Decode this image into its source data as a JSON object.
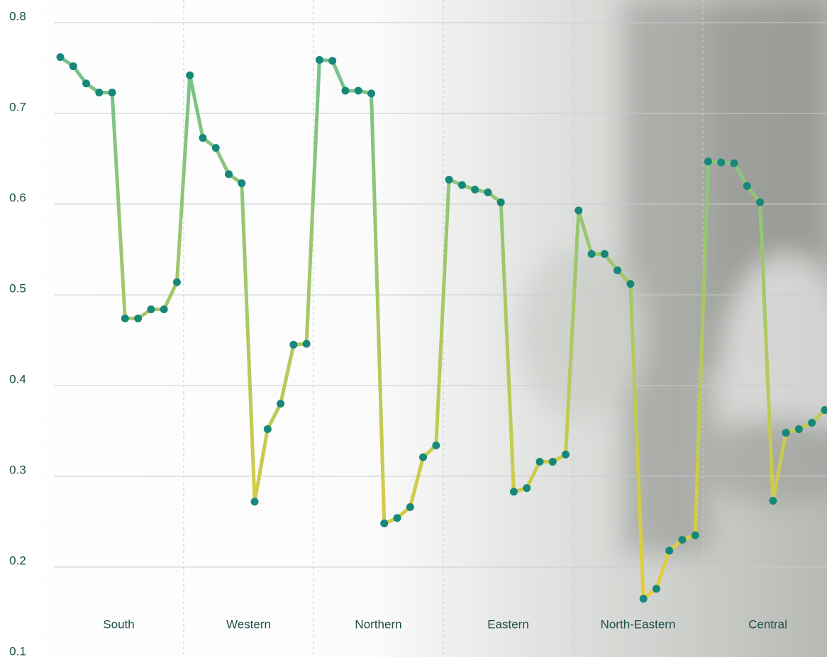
{
  "chart_data": {
    "type": "line",
    "ylim": [
      0.1,
      0.8
    ],
    "yticks": [
      0.1,
      0.2,
      0.3,
      0.4,
      0.5,
      0.6,
      0.7,
      0.8
    ],
    "grid": true,
    "line_colors": [
      "#6cc193",
      "#f3d02c"
    ],
    "marker_color": "#17877a",
    "groups": [
      {
        "name": "South",
        "values": [
          0.762,
          0.752,
          0.733,
          0.723,
          0.723,
          0.474,
          0.474,
          0.484,
          0.484,
          0.514
        ]
      },
      {
        "name": "Western",
        "values": [
          0.742,
          0.673,
          0.662,
          0.633,
          0.623,
          0.272,
          0.352,
          0.38,
          0.445,
          0.446
        ]
      },
      {
        "name": "Northern",
        "values": [
          0.759,
          0.758,
          0.725,
          0.725,
          0.722,
          0.248,
          0.254,
          0.266,
          0.321,
          0.334
        ]
      },
      {
        "name": "Eastern",
        "values": [
          0.627,
          0.621,
          0.616,
          0.613,
          0.602,
          0.283,
          0.287,
          0.316,
          0.316,
          0.324
        ]
      },
      {
        "name": "North-Eastern",
        "values": [
          0.593,
          0.545,
          0.545,
          0.527,
          0.512,
          0.165,
          0.176,
          0.218,
          0.23,
          0.235
        ]
      },
      {
        "name": "Central",
        "values": [
          0.647,
          0.646,
          0.645,
          0.62,
          0.602,
          0.273,
          0.348,
          0.352,
          0.359,
          0.373
        ]
      }
    ]
  }
}
